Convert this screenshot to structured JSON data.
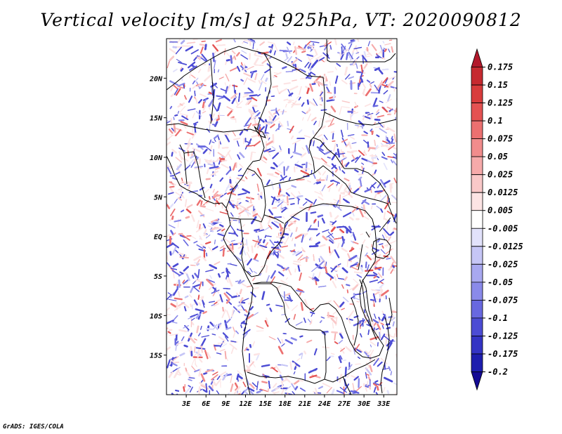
{
  "title": "Vertical velocity [m/s] at 925hPa, VT: 2020090812",
  "credit": "GrADS: IGES/COLA",
  "map": {
    "lon_range": [
      0,
      35
    ],
    "lat_range": [
      -20,
      25
    ],
    "lat_ticks": [
      {
        "value": 20,
        "label": "20N"
      },
      {
        "value": 15,
        "label": "15N"
      },
      {
        "value": 10,
        "label": "10N"
      },
      {
        "value": 5,
        "label": "5N"
      },
      {
        "value": 0,
        "label": "EQ"
      },
      {
        "value": -5,
        "label": "5S"
      },
      {
        "value": -10,
        "label": "10S"
      },
      {
        "value": -15,
        "label": "15S"
      }
    ],
    "lon_ticks": [
      {
        "value": 3,
        "label": "3E"
      },
      {
        "value": 6,
        "label": "6E"
      },
      {
        "value": 9,
        "label": "9E"
      },
      {
        "value": 12,
        "label": "12E"
      },
      {
        "value": 15,
        "label": "15E"
      },
      {
        "value": 18,
        "label": "18E"
      },
      {
        "value": 21,
        "label": "21E"
      },
      {
        "value": 24,
        "label": "24E"
      },
      {
        "value": 27,
        "label": "27E"
      },
      {
        "value": 30,
        "label": "30E"
      },
      {
        "value": 33,
        "label": "33E"
      }
    ]
  },
  "colorbar": {
    "levels": [
      "0.175",
      "0.15",
      "0.125",
      "0.1",
      "0.075",
      "0.05",
      "0.025",
      "0.0125",
      "0.005",
      "-0.005",
      "-0.0125",
      "-0.025",
      "-0.05",
      "-0.075",
      "-0.1",
      "-0.125",
      "-0.175",
      "-0.2"
    ],
    "colors": [
      "#b2182b",
      "#c62a30",
      "#d83c3c",
      "#e45252",
      "#ec7070",
      "#f18c8c",
      "#f6aaaa",
      "#f9c8c8",
      "#fce4e4",
      "#ffffff",
      "#e2e2fb",
      "#c6c6f6",
      "#a8a8f0",
      "#8a8aea",
      "#6868e0",
      "#4c4cd4",
      "#3434c4",
      "#1e1eae",
      "#140a94"
    ]
  }
}
